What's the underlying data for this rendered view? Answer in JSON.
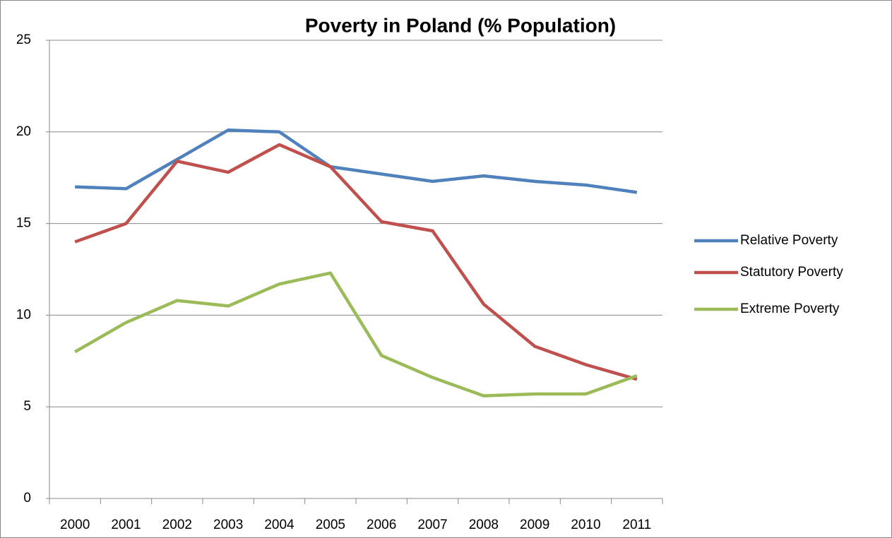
{
  "chart_data": {
    "type": "line",
    "title": "Poverty in Poland (% Population)",
    "categories": [
      "2000",
      "2001",
      "2002",
      "2003",
      "2004",
      "2005",
      "2006",
      "2007",
      "2008",
      "2009",
      "2010",
      "2011"
    ],
    "series": [
      {
        "name": "Relative Poverty",
        "color": "#4f81bd",
        "values": [
          17.0,
          16.9,
          18.5,
          20.1,
          20.0,
          18.1,
          17.7,
          17.3,
          17.6,
          17.3,
          17.1,
          16.7
        ]
      },
      {
        "name": "Statutory Poverty",
        "color": "#c0504d",
        "values": [
          14.0,
          15.0,
          18.4,
          17.8,
          19.3,
          18.1,
          15.1,
          14.6,
          10.6,
          8.3,
          7.3,
          6.5
        ]
      },
      {
        "name": "Extreme Poverty",
        "color": "#9bbb59",
        "values": [
          8.0,
          9.6,
          10.8,
          10.5,
          11.7,
          12.3,
          7.8,
          6.6,
          5.6,
          5.7,
          5.7,
          6.7
        ]
      }
    ],
    "ylim": [
      0,
      25
    ],
    "yticks": [
      0,
      5,
      10,
      15,
      20,
      25
    ],
    "grid": true,
    "legend": "right"
  }
}
